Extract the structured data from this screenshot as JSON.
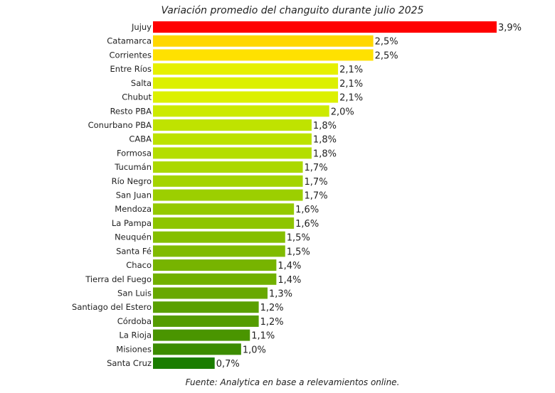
{
  "chart_data": {
    "type": "bar",
    "orientation": "horizontal",
    "title": "Variación promedio del changuito durante julio 2025",
    "source": "Fuente: Analytica en base a relevamientos online.",
    "categories": [
      "Jujuy",
      "Catamarca",
      "Corrientes",
      "Entre Ríos",
      "Salta",
      "Chubut",
      "Resto PBA",
      "Conurbano PBA",
      "CABA",
      "Formosa",
      "Tucumán",
      "Río Negro",
      "San Juan",
      "Mendoza",
      "La Pampa",
      "Neuquén",
      "Santa Fé",
      "Chaco",
      "Tierra del Fuego",
      "San Luis",
      "Santiago del Estero",
      "Córdoba",
      "La Rioja",
      "Misiones",
      "Santa Cruz"
    ],
    "values": [
      3.9,
      2.5,
      2.5,
      2.1,
      2.1,
      2.1,
      2.0,
      1.8,
      1.8,
      1.8,
      1.7,
      1.7,
      1.7,
      1.6,
      1.6,
      1.5,
      1.5,
      1.4,
      1.4,
      1.3,
      1.2,
      1.2,
      1.1,
      1.0,
      0.7
    ],
    "value_labels": [
      "3,9%",
      "2,5%",
      "2,5%",
      "2,1%",
      "2,1%",
      "2,1%",
      "2,0%",
      "1,8%",
      "1,8%",
      "1,8%",
      "1,7%",
      "1,7%",
      "1,7%",
      "1,6%",
      "1,6%",
      "1,5%",
      "1,5%",
      "1,4%",
      "1,4%",
      "1,3%",
      "1,2%",
      "1,2%",
      "1,1%",
      "1,0%",
      "0,7%"
    ],
    "colors": [
      "#ff0000",
      "#ffd700",
      "#ffe100",
      "#e6f000",
      "#dcf000",
      "#dcf000",
      "#ccea00",
      "#bfe300",
      "#bce200",
      "#b4de00",
      "#abd800",
      "#a4d400",
      "#9ccf00",
      "#94c900",
      "#8ec500",
      "#85bf00",
      "#80bb00",
      "#77b400",
      "#71b000",
      "#68a800",
      "#5aa000",
      "#549c00",
      "#4a9500",
      "#3c8c00",
      "#1a7d00"
    ],
    "xlim": [
      0,
      3.9
    ],
    "grid": false,
    "legend": "none"
  }
}
